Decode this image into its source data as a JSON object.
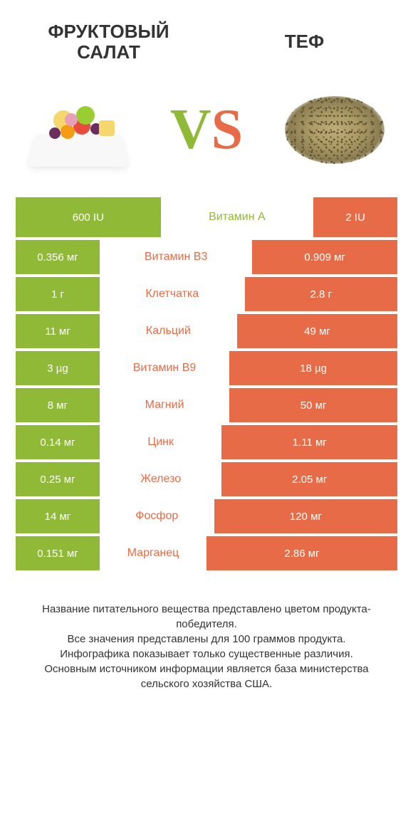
{
  "header": {
    "left_title_line1": "ФРУКТОВЫЙ",
    "left_title_line2": "САЛАТ",
    "right_title": "ТЕФ"
  },
  "vs": {
    "v": "V",
    "s": "S"
  },
  "colors": {
    "left": "#8fb936",
    "right": "#e76b46",
    "mid_text": "#e76b46",
    "background": "#ffffff"
  },
  "table": {
    "left_min_pct": 22,
    "right_min_pct": 22,
    "rows": [
      {
        "nutrient": "Витамин A",
        "left": "600 IU",
        "right": "2 IU",
        "leftW": 38,
        "rightW": 22,
        "winner": "left"
      },
      {
        "nutrient": "Витамин B3",
        "left": "0.356 мг",
        "right": "0.909 мг",
        "leftW": 22,
        "rightW": 38,
        "winner": "right"
      },
      {
        "nutrient": "Клетчатка",
        "left": "1 г",
        "right": "2.8 г",
        "leftW": 22,
        "rightW": 40,
        "winner": "right"
      },
      {
        "nutrient": "Кальций",
        "left": "11 мг",
        "right": "49 мг",
        "leftW": 22,
        "rightW": 42,
        "winner": "right"
      },
      {
        "nutrient": "Витамин B9",
        "left": "3 µg",
        "right": "18 µg",
        "leftW": 22,
        "rightW": 44,
        "winner": "right"
      },
      {
        "nutrient": "Магний",
        "left": "8 мг",
        "right": "50 мг",
        "leftW": 22,
        "rightW": 44,
        "winner": "right"
      },
      {
        "nutrient": "Цинк",
        "left": "0.14 мг",
        "right": "1.11 мг",
        "leftW": 22,
        "rightW": 46,
        "winner": "right"
      },
      {
        "nutrient": "Железо",
        "left": "0.25 мг",
        "right": "2.05 мг",
        "leftW": 22,
        "rightW": 46,
        "winner": "right"
      },
      {
        "nutrient": "Фосфор",
        "left": "14 мг",
        "right": "120 мг",
        "leftW": 22,
        "rightW": 48,
        "winner": "right"
      },
      {
        "nutrient": "Марганец",
        "left": "0.151 мг",
        "right": "2.86 мг",
        "leftW": 22,
        "rightW": 50,
        "winner": "right"
      }
    ]
  },
  "footer": {
    "line1": "Название питательного вещества представлено цветом продукта-победителя.",
    "line2": "Все значения представлены для 100 граммов продукта.",
    "line3": "Инфографика показывает только существенные различия.",
    "line4": "Основным источником информации является база министерства сельского хозяйства США."
  }
}
